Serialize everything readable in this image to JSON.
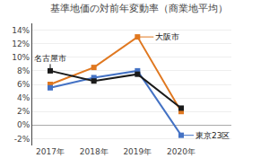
{
  "chart_data": {
    "type": "line",
    "title": "基準地価の対前年変動率（商業地平均）",
    "categories": [
      "2017年",
      "2018年",
      "2019年",
      "2020年"
    ],
    "series": [
      {
        "name": "大阪市",
        "color": "#e07820",
        "values": [
          6.0,
          8.5,
          13.0,
          2.0
        ]
      },
      {
        "name": "東京23区",
        "color": "#4472c4",
        "values": [
          5.5,
          7.0,
          8.0,
          -1.5
        ]
      },
      {
        "name": "名古屋市",
        "color": "#1a1a1a",
        "values": [
          8.0,
          6.5,
          7.5,
          2.5
        ]
      }
    ],
    "marker": "square",
    "ylim": [
      -3,
      15
    ],
    "yticks": [
      {
        "value": -2,
        "label": "-2%"
      },
      {
        "value": 0,
        "label": "0%"
      },
      {
        "value": 2,
        "label": "2%"
      },
      {
        "value": 4,
        "label": "4%"
      },
      {
        "value": 6,
        "label": "6%"
      },
      {
        "value": 8,
        "label": "8%"
      },
      {
        "value": 10,
        "label": "10%"
      },
      {
        "value": 12,
        "label": "12%"
      },
      {
        "value": 14,
        "label": "14%"
      }
    ],
    "grid": true
  }
}
